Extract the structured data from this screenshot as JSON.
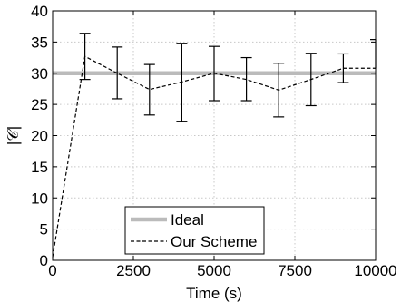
{
  "chart_data": {
    "type": "line",
    "xlabel": "Time (s)",
    "ylabel": "|𝒞|",
    "xlim": [
      0,
      10000
    ],
    "ylim": [
      0,
      40
    ],
    "xticks": [
      0,
      2500,
      5000,
      7500,
      10000
    ],
    "xtick_labels": [
      "0",
      "2500",
      "5000",
      "7500",
      "10000"
    ],
    "yticks": [
      0,
      5,
      10,
      15,
      20,
      25,
      30,
      35,
      40
    ],
    "ytick_labels": [
      "0",
      "5",
      "10",
      "15",
      "20",
      "25",
      "30",
      "35",
      "40"
    ],
    "grid": true,
    "legend_position": "bottom-center",
    "series": [
      {
        "name": "Ideal",
        "style": "solid",
        "color": "#bbbbbb",
        "x": [
          0,
          10000
        ],
        "y": [
          30,
          30
        ]
      },
      {
        "name": "Our Scheme",
        "style": "dashed",
        "color": "#000000",
        "x": [
          0,
          1000,
          2000,
          3000,
          4000,
          5000,
          6000,
          7000,
          8000,
          9000,
          10000
        ],
        "y": [
          0.5,
          32.7,
          30.0,
          27.4,
          28.6,
          30.0,
          29.0,
          27.3,
          29.0,
          30.8,
          30.8
        ],
        "error_low": [
          null,
          29.0,
          25.9,
          23.3,
          22.3,
          25.6,
          25.6,
          23.0,
          24.8,
          28.5,
          null
        ],
        "error_high": [
          null,
          36.4,
          34.2,
          31.4,
          34.8,
          34.3,
          32.5,
          31.6,
          33.2,
          33.1,
          35.4
        ]
      }
    ]
  }
}
